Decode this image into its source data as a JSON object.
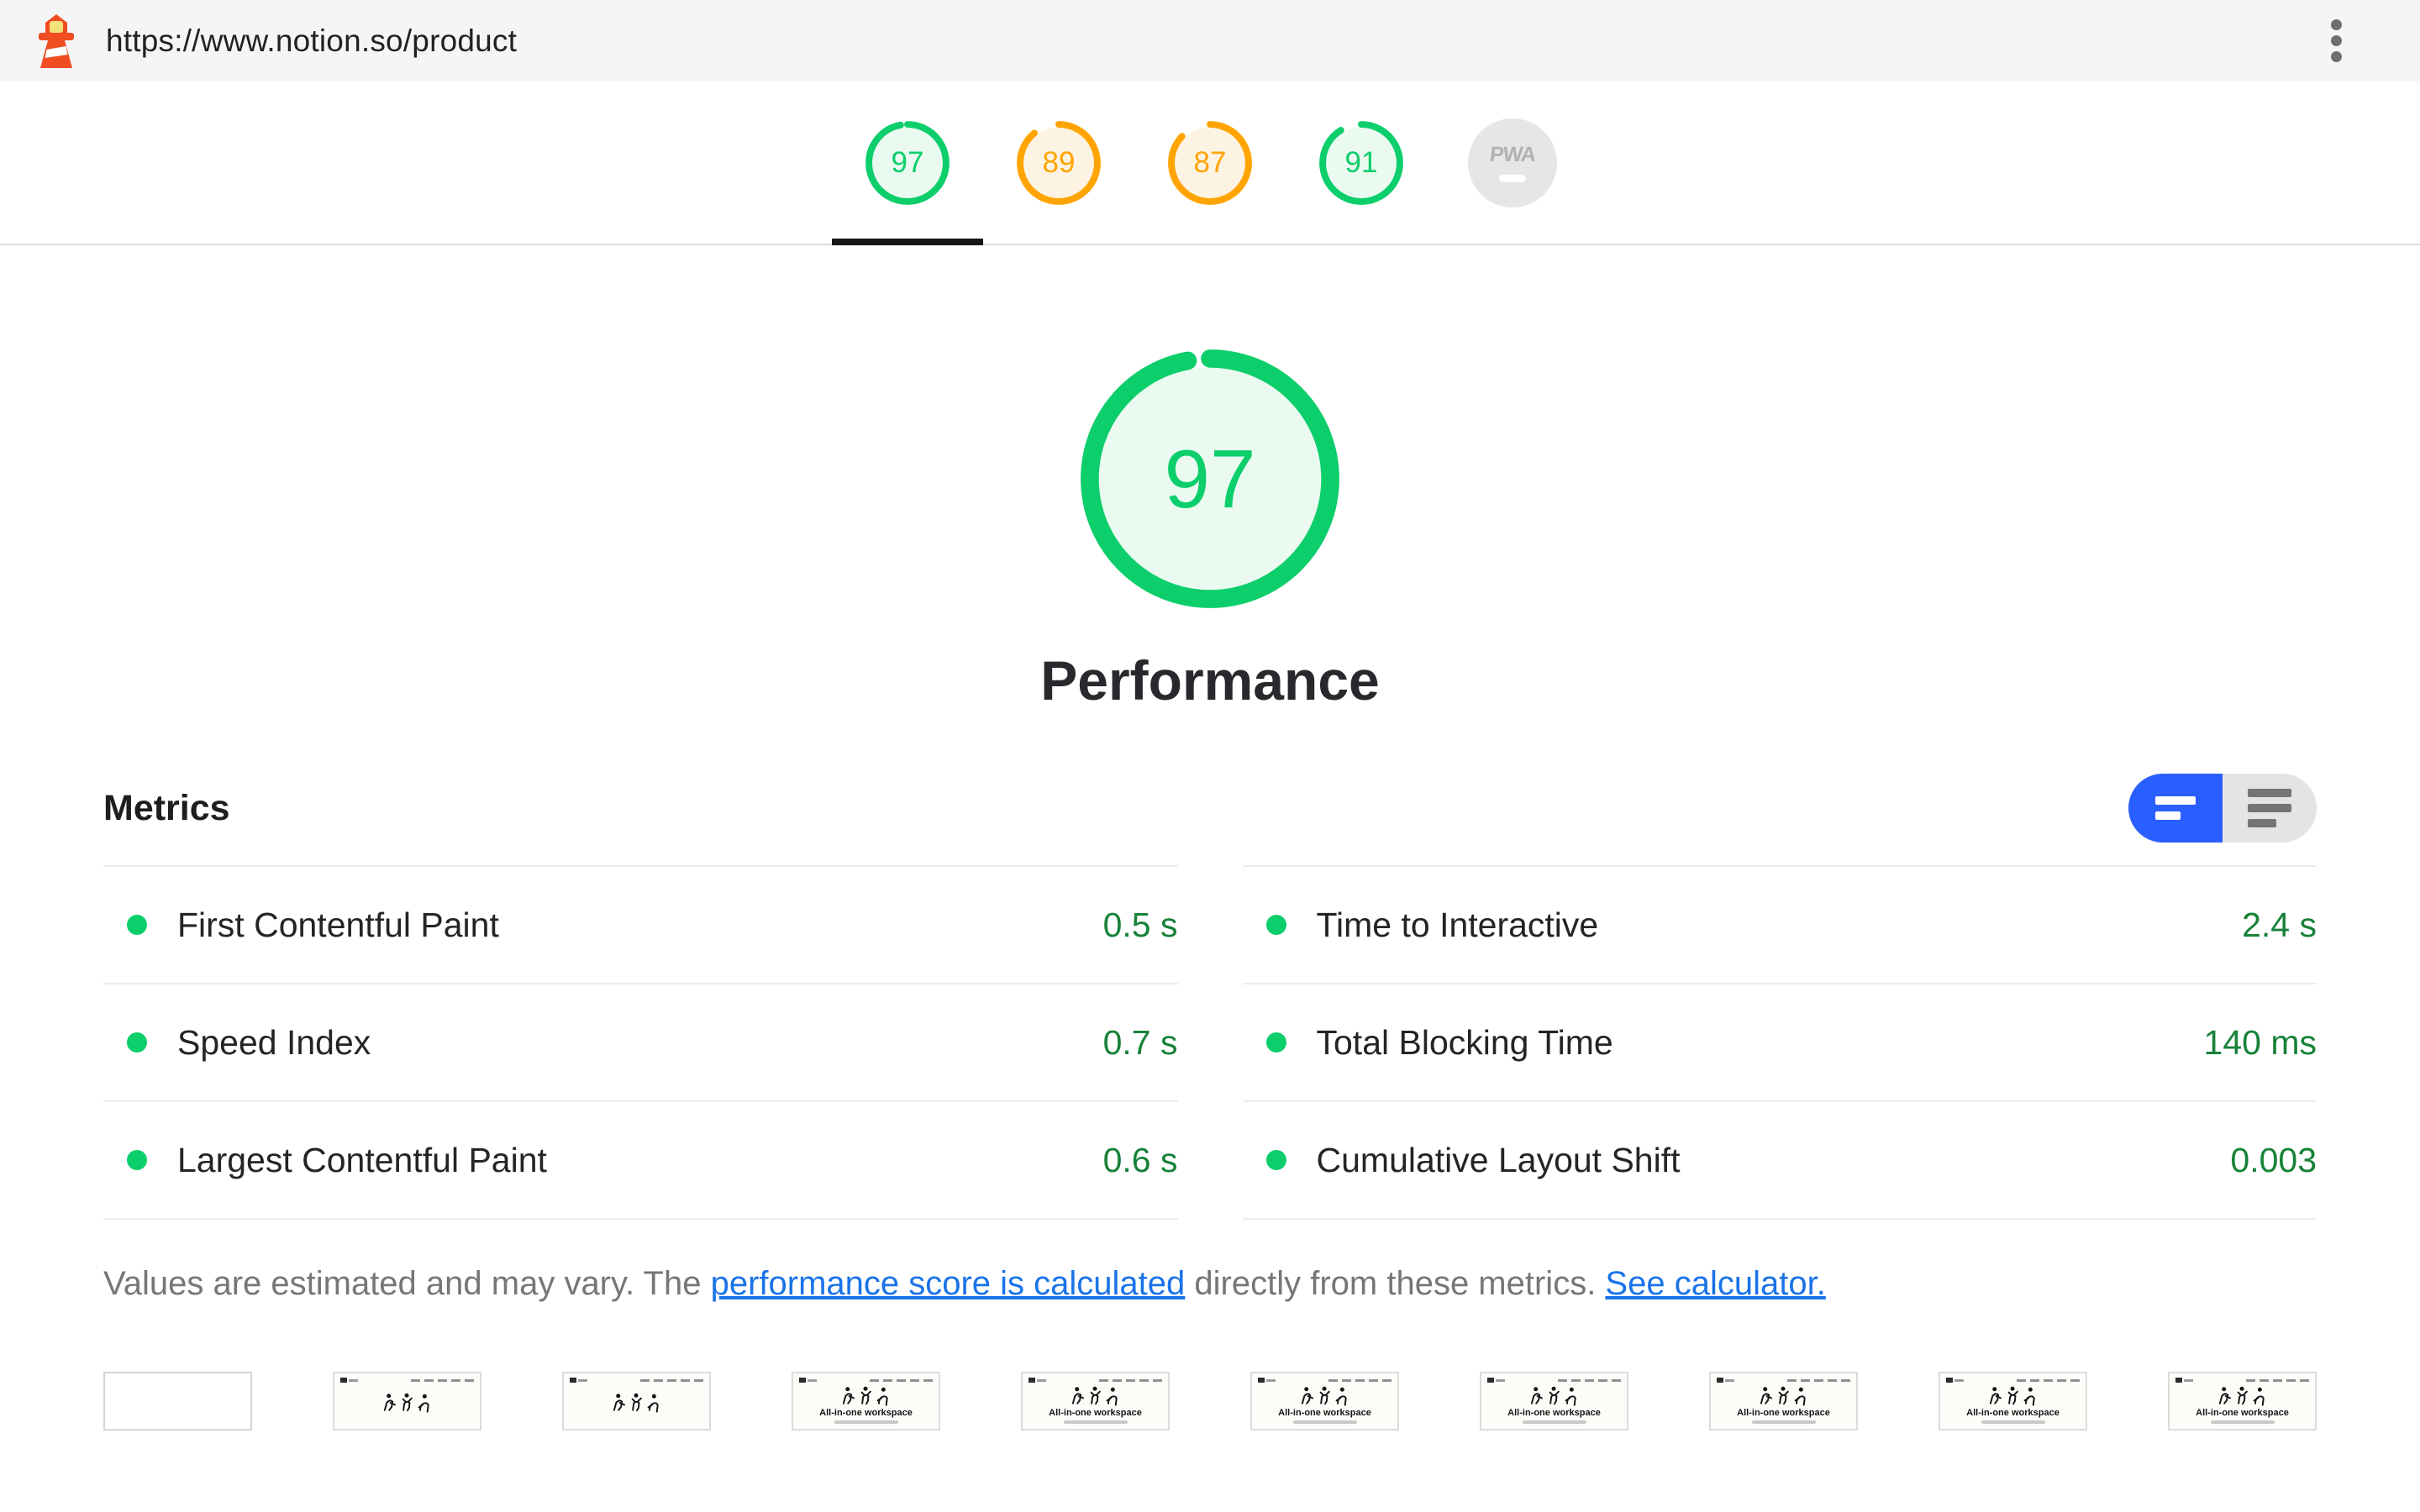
{
  "topbar": {
    "url": "https://www.notion.so/product",
    "logo_icon": "lighthouse-icon",
    "menu_icon": "kebab-menu-icon"
  },
  "active_tab_index": 0,
  "category_gauges": [
    {
      "id": "performance",
      "score": 97,
      "status": "pass"
    },
    {
      "id": "accessibility",
      "score": 89,
      "status": "average"
    },
    {
      "id": "best-practices",
      "score": 87,
      "status": "average"
    },
    {
      "id": "seo",
      "score": 91,
      "status": "pass"
    },
    {
      "id": "pwa",
      "badge": "PWA",
      "status": "na"
    }
  ],
  "main_gauge": {
    "score": 97,
    "label": "Performance",
    "status": "pass"
  },
  "metrics": {
    "heading": "Metrics",
    "toggle": {
      "active": "condensed",
      "left_icon": "condensed-view-icon",
      "right_icon": "expanded-view-icon"
    },
    "columns": [
      [
        {
          "label": "First Contentful Paint",
          "value": "0.5 s",
          "status": "pass"
        },
        {
          "label": "Speed Index",
          "value": "0.7 s",
          "status": "pass"
        },
        {
          "label": "Largest Contentful Paint",
          "value": "0.6 s",
          "status": "pass"
        }
      ],
      [
        {
          "label": "Time to Interactive",
          "value": "2.4 s",
          "status": "pass"
        },
        {
          "label": "Total Blocking Time",
          "value": "140 ms",
          "status": "pass"
        },
        {
          "label": "Cumulative Layout Shift",
          "value": "0.003",
          "status": "pass"
        }
      ]
    ],
    "disclaimer": {
      "prefix": "Values are estimated and may vary. The ",
      "link1": "performance score is calculated",
      "middle": " directly from these metrics. ",
      "link2": "See calculator."
    }
  },
  "filmstrip": {
    "page_title": "All-in-one workspace",
    "frames": [
      {
        "content": "blank"
      },
      {
        "content": "figures"
      },
      {
        "content": "figures"
      },
      {
        "content": "full"
      },
      {
        "content": "full"
      },
      {
        "content": "full"
      },
      {
        "content": "full"
      },
      {
        "content": "full"
      },
      {
        "content": "full"
      },
      {
        "content": "full"
      }
    ]
  },
  "colors": {
    "pass_ring": "#0cce6b",
    "pass_fill": "#eafaf1",
    "average_ring": "#ffa400",
    "average_fill": "#fdf3e3",
    "na_circle": "#e6e6e6",
    "metric_value_green": "#178239",
    "link_blue": "#1a73e8",
    "toggle_active_blue": "#2a5fff",
    "tab_indicator_black": "#161616"
  }
}
